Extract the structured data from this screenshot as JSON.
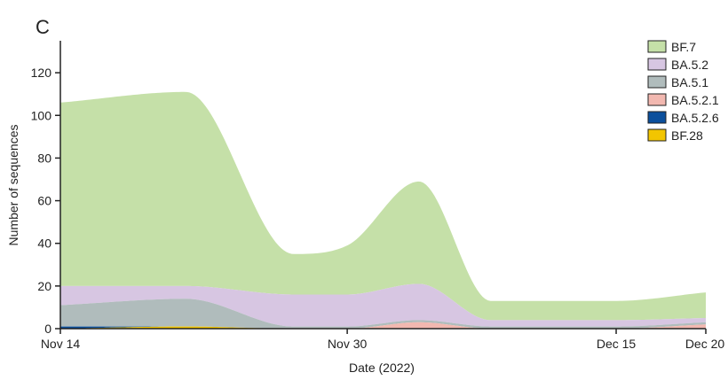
{
  "panel_label": "C",
  "chart_data": {
    "type": "area",
    "stacked": true,
    "title": "",
    "xlabel": "Date (2022)",
    "ylabel": "Number of sequences",
    "x_ticks": [
      "Nov 14",
      "Nov 30",
      "Dec 15",
      "Dec 20"
    ],
    "x_tick_days": [
      0,
      16,
      31,
      36
    ],
    "x_range": [
      0,
      36
    ],
    "y_ticks": [
      0,
      20,
      40,
      60,
      80,
      100,
      120
    ],
    "ylim": [
      0,
      135
    ],
    "grid": false,
    "legend_position": "top-right",
    "x_days": [
      0,
      7,
      13,
      16,
      20,
      24,
      31,
      36
    ],
    "series": [
      {
        "name": "BF.28",
        "color": "#f2c500",
        "values": [
          0,
          1,
          0,
          0,
          0,
          0,
          0,
          0
        ]
      },
      {
        "name": "BA.5.2.6",
        "color": "#0b4f9c",
        "values": [
          1,
          0,
          0,
          0,
          0,
          0,
          0,
          0
        ]
      },
      {
        "name": "BA.5.2.1",
        "color": "#f2b8b0",
        "values": [
          0,
          0,
          0,
          0,
          3,
          0,
          0,
          2
        ]
      },
      {
        "name": "BA.5.1",
        "color": "#b0bcbc",
        "values": [
          10,
          13,
          1,
          1,
          1,
          1,
          1,
          1
        ]
      },
      {
        "name": "BA.5.2",
        "color": "#d7c6e2",
        "values": [
          9,
          6,
          15,
          15,
          17,
          3,
          3,
          2
        ]
      },
      {
        "name": "BF.7",
        "color": "#c5e0a8",
        "values": [
          86,
          91,
          19,
          23,
          48,
          9,
          9,
          12
        ]
      }
    ],
    "legend_order": [
      "BF.7",
      "BA.5.2",
      "BA.5.1",
      "BA.5.2.1",
      "BA.5.2.6",
      "BF.28"
    ]
  }
}
